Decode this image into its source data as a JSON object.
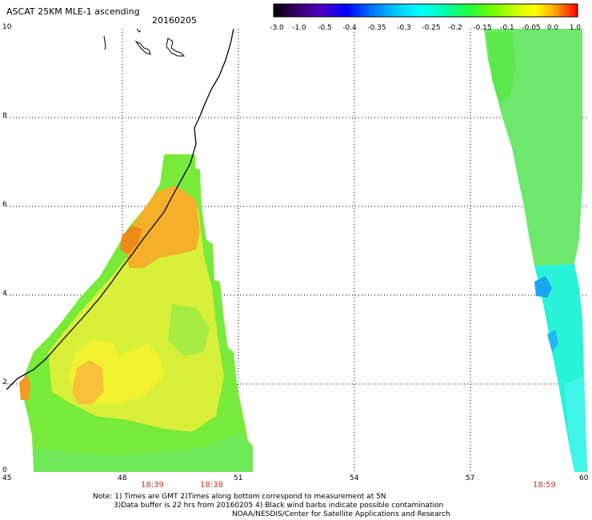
{
  "header": {
    "title": "ASCAT 25KM MLE-1 ascending",
    "date": "20160205"
  },
  "colorbar": {
    "labels": [
      "-3.0",
      "-1.0",
      "-0.5",
      "-0.4",
      "-0.35",
      "-0.3",
      "-0.25",
      "-0.2",
      "-0.15",
      "-0.1",
      "-0.05",
      "0.0",
      "1.0"
    ],
    "colors": [
      "#000000",
      "#4b0082",
      "#0000ff",
      "#0080ff",
      "#00bfff",
      "#00ffff",
      "#00ffbf",
      "#00ff80",
      "#40ff00",
      "#aaff00",
      "#ffff00",
      "#ffaa00",
      "#ff0000"
    ]
  },
  "axes": {
    "y_ticks": [
      "0",
      "2",
      "4",
      "6",
      "8",
      "10"
    ],
    "x_ticks": [
      "45",
      "48",
      "51",
      "54",
      "57",
      "60"
    ],
    "x_range": [
      45,
      60
    ],
    "y_range": [
      0,
      10
    ]
  },
  "pass_times": [
    "18:39",
    "18:38",
    "18:59"
  ],
  "notes": {
    "line1": "Note: 1) Times are GMT 2)Times along bottom correspond to measurement at 5N",
    "line2": "3)Data buffer is 22 hrs from 20160205 4) Black wind barbs indicate possible contamination",
    "line3": "NOAA/NESDIS/Center for Satellite Applications and Research"
  }
}
